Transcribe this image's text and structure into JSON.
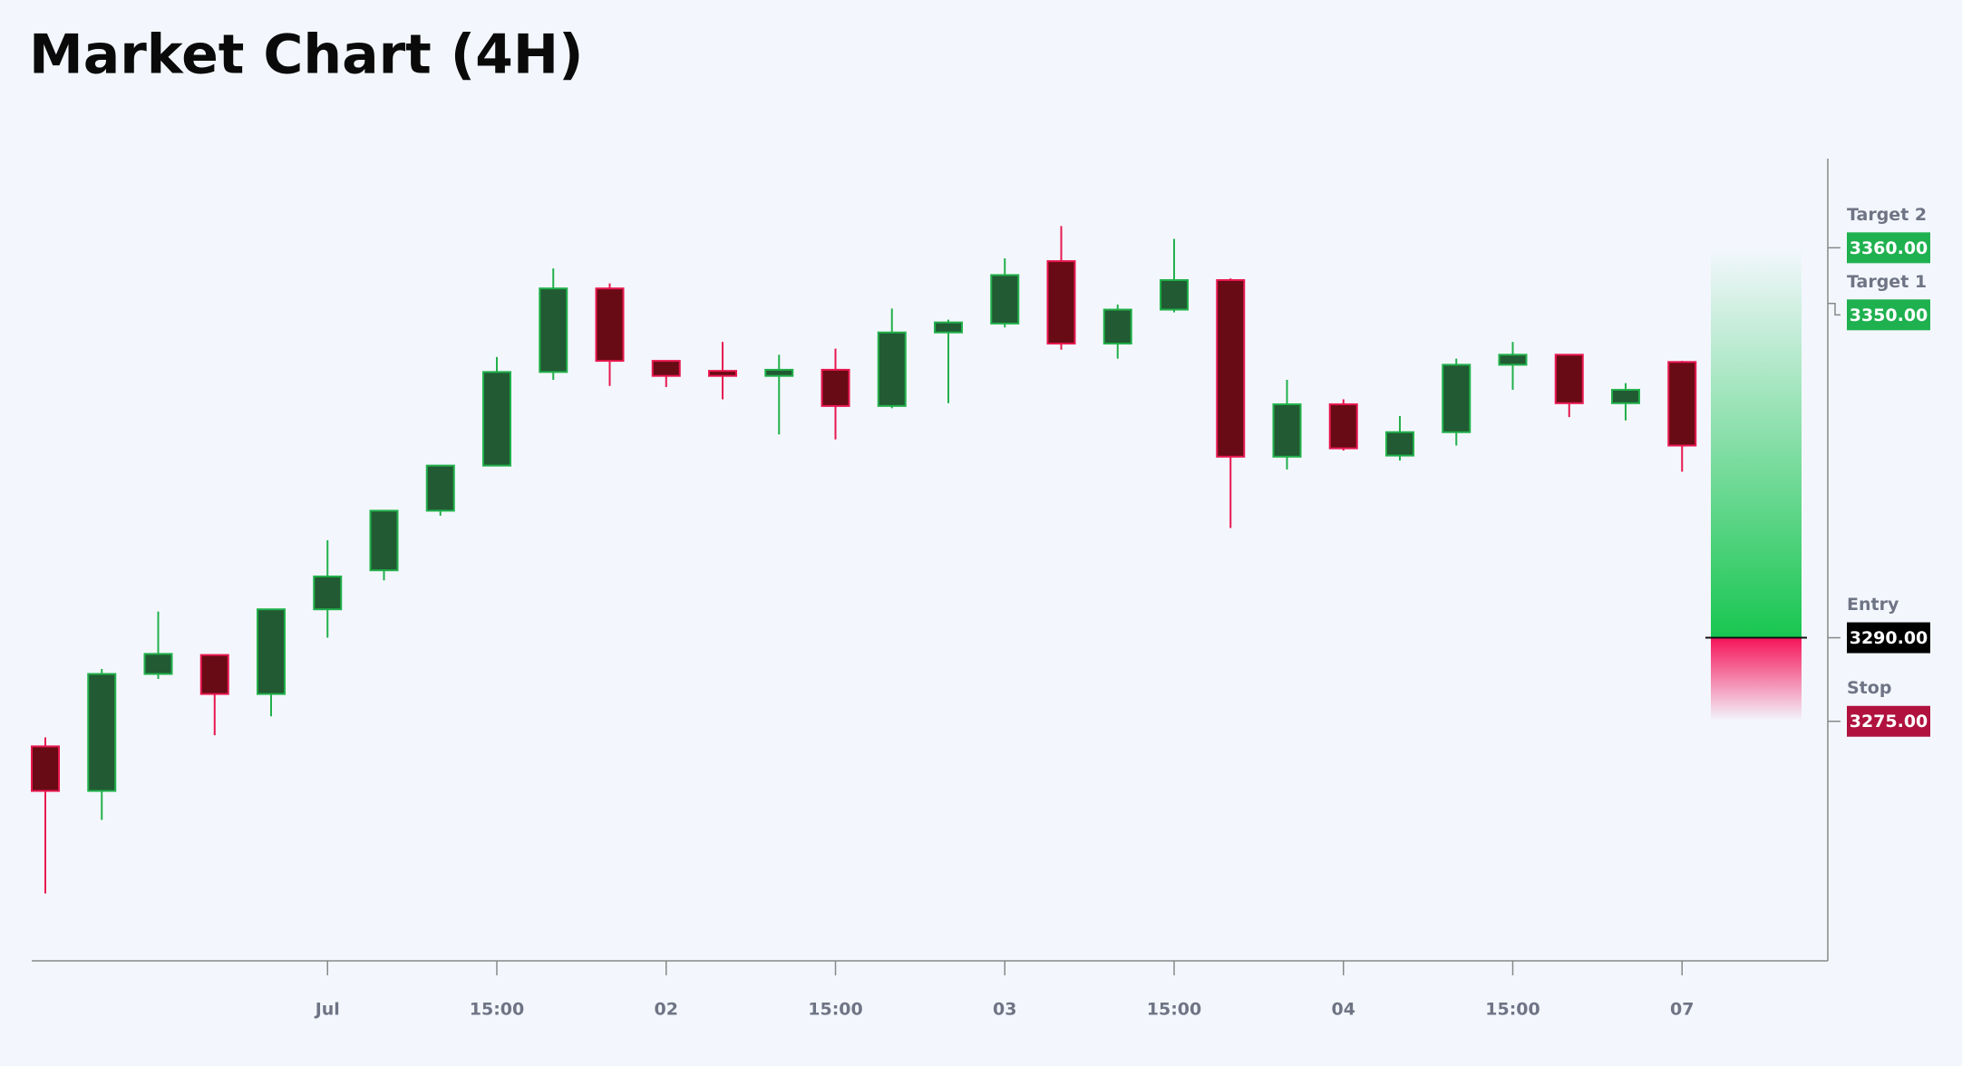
{
  "chart_data": {
    "type": "candlestick",
    "title": "Market Chart (4H)",
    "categories": [
      null,
      null,
      null,
      null,
      null,
      "Jul",
      null,
      null,
      "15:00",
      null,
      null,
      "02",
      null,
      null,
      "15:00",
      null,
      null,
      "03",
      null,
      null,
      "15:00",
      null,
      null,
      "04",
      null,
      null,
      "15:00",
      null,
      null,
      "07"
    ],
    "open": [
      3270.5,
      3262.5,
      3283.5,
      3286.9,
      3279.9,
      3295.1,
      3302.1,
      3312.8,
      3320.9,
      3337.7,
      3352.7,
      3339.7,
      3337.9,
      3337.0,
      3338.1,
      3331.6,
      3344.8,
      3346.4,
      3357.6,
      3342.8,
      3348.9,
      3354.2,
      3322.5,
      3331.9,
      3322.7,
      3326.9,
      3339.0,
      3340.8,
      3332.1,
      3339.5
    ],
    "high": [
      3272.1,
      3284.4,
      3294.7,
      3286.9,
      3295.1,
      3307.5,
      3312.8,
      3320.9,
      3340.4,
      3356.3,
      3353.6,
      3339.7,
      3343.1,
      3340.8,
      3341.9,
      3349.1,
      3347.1,
      3358.1,
      3363.9,
      3349.8,
      3361.6,
      3354.5,
      3336.3,
      3332.8,
      3329.8,
      3340.1,
      3343.1,
      3340.8,
      3335.7,
      3339.7
    ],
    "low": [
      3244.1,
      3257.3,
      3282.6,
      3272.5,
      3275.9,
      3290.0,
      3300.3,
      3311.9,
      3320.9,
      3336.3,
      3335.2,
      3335.0,
      3332.8,
      3326.5,
      3325.6,
      3331.2,
      3332.1,
      3345.7,
      3341.7,
      3340.1,
      3348.4,
      3309.7,
      3320.2,
      3323.6,
      3321.8,
      3324.5,
      3334.5,
      3329.6,
      3329.0,
      3319.8
    ],
    "close": [
      3262.5,
      3283.5,
      3287.1,
      3279.9,
      3295.1,
      3301.0,
      3312.8,
      3320.9,
      3337.7,
      3352.7,
      3339.7,
      3337.0,
      3337.0,
      3338.1,
      3331.6,
      3344.8,
      3346.6,
      3355.1,
      3342.8,
      3348.9,
      3354.2,
      3322.5,
      3331.9,
      3324.0,
      3326.9,
      3339.0,
      3340.8,
      3332.1,
      3334.5,
      3324.5
    ],
    "up_color": "#22b04b",
    "up_fill": "#215a33",
    "down_color": "#e8174f",
    "down_fill": "#680b14",
    "ylim": [
      3232,
      3376
    ],
    "levels": [
      {
        "name": "Target 2",
        "value": 3360,
        "value_label": "3360.00",
        "color": "#1fb14f"
      },
      {
        "name": "Target 1",
        "value": 3350,
        "value_label": "3350.00",
        "color": "#1fb14f"
      },
      {
        "name": "Entry",
        "value": 3290,
        "value_label": "3290.00",
        "color": "#000000"
      },
      {
        "name": "Stop",
        "value": 3275,
        "value_label": "3275.00",
        "color": "#b0113e"
      }
    ]
  }
}
